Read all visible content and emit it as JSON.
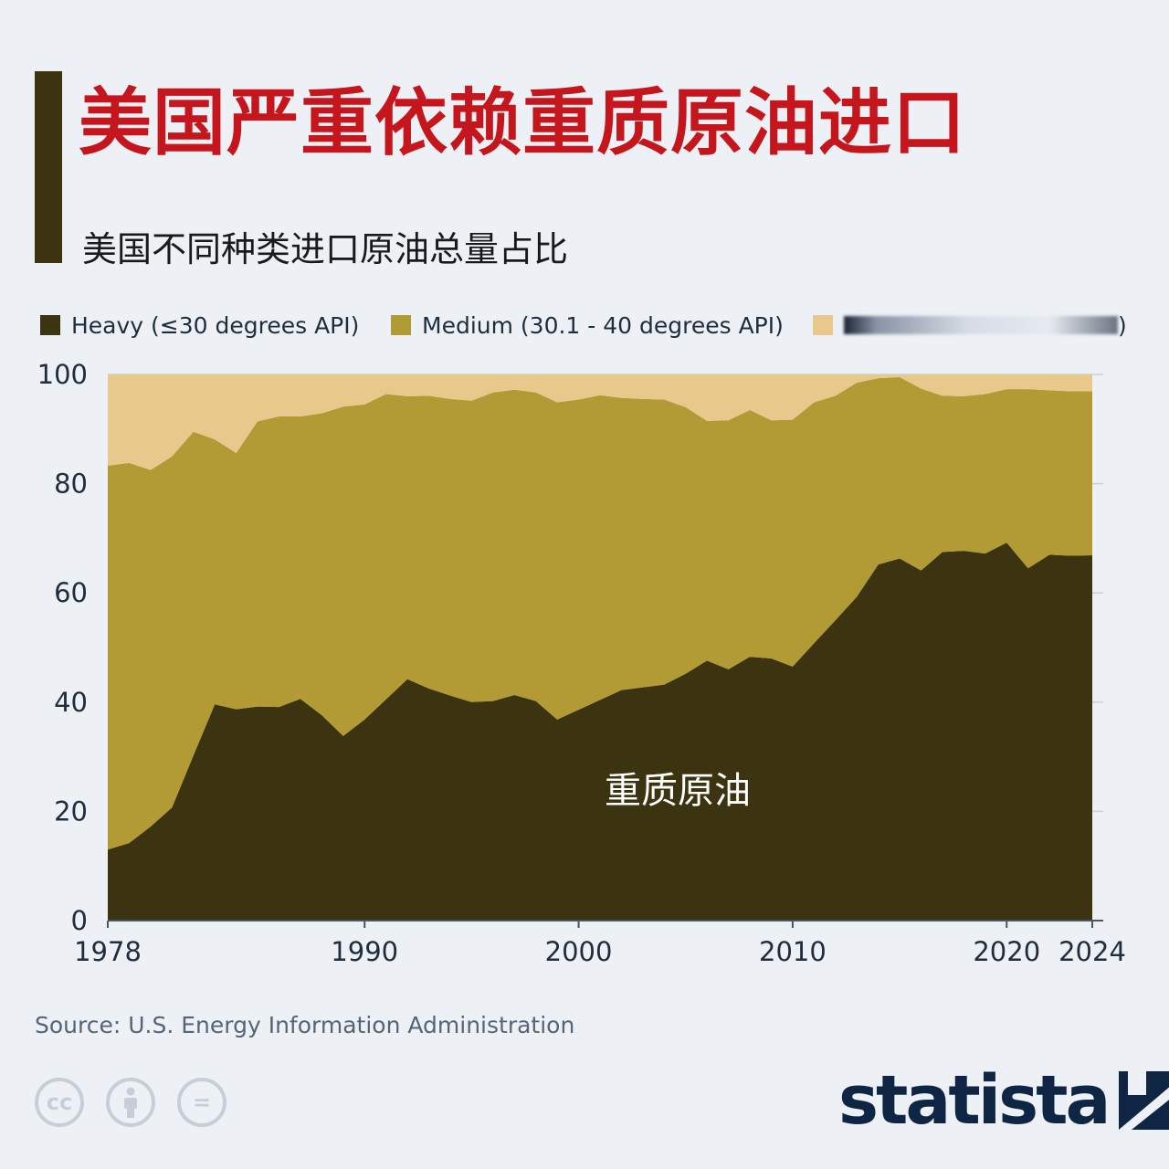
{
  "header": {
    "title": "美国严重依赖重质原油进口",
    "subtitle": "美国不同种类进口原油总量占比"
  },
  "legend": {
    "heavy": "Heavy (≤30 degrees API)",
    "medium": "Medium (30.1 - 40 degrees API)",
    "light_suffix": ")"
  },
  "colors": {
    "heavy": "#3c3410",
    "medium": "#b29a34",
    "light": "#e8c98b",
    "title": "#c4161c",
    "background": "#edf1f6"
  },
  "chart_data": {
    "type": "area",
    "stacked": true,
    "x": [
      1978,
      1979,
      1980,
      1981,
      1982,
      1983,
      1984,
      1985,
      1986,
      1987,
      1988,
      1989,
      1990,
      1991,
      1992,
      1993,
      1994,
      1995,
      1996,
      1997,
      1998,
      1999,
      2000,
      2001,
      2002,
      2003,
      2004,
      2005,
      2006,
      2007,
      2008,
      2009,
      2010,
      2011,
      2012,
      2013,
      2014,
      2015,
      2016,
      2017,
      2018,
      2019,
      2020,
      2021,
      2022,
      2023,
      2024
    ],
    "series": [
      {
        "name": "Heavy (≤30 degrees API)",
        "values": [
          13,
          14.2,
          17.2,
          20.7,
          30.2,
          39.6,
          38.7,
          39.2,
          39.1,
          40.6,
          37.6,
          33.8,
          36.8,
          40.5,
          44.2,
          42.5,
          41.2,
          40,
          40.2,
          41.3,
          40.2,
          36.8,
          38.6,
          40.4,
          42.2,
          42.7,
          43.2,
          45.2,
          47.6,
          46,
          48.3,
          48,
          46.5,
          50.8,
          55,
          59.3,
          65.2,
          66.3,
          64.1,
          67.5,
          67.7,
          67.2,
          69.2,
          64.5,
          67,
          66.8,
          66.9
        ]
      },
      {
        "name": "Medium (30.1 - 40 degrees API)",
        "values": [
          70.3,
          69.6,
          65.3,
          64.3,
          59.3,
          48.5,
          46.9,
          52.2,
          53.2,
          51.7,
          55.3,
          60.3,
          57.7,
          55.9,
          51.8,
          53.6,
          54.3,
          55.2,
          56.5,
          55.9,
          56.5,
          58.1,
          56.8,
          55.8,
          53.5,
          52.8,
          52.2,
          48.8,
          43.9,
          45.6,
          45.2,
          43.6,
          45.2,
          44.1,
          41.1,
          39.2,
          34.1,
          33.2,
          33.3,
          28.6,
          28.3,
          29.2,
          28.1,
          32.8,
          30.1,
          30.1,
          30
        ]
      },
      {
        "name": "",
        "values": [
          16.7,
          16.2,
          17.5,
          15,
          10.5,
          11.9,
          14.4,
          8.6,
          7.7,
          7.7,
          7.1,
          5.9,
          5.5,
          3.6,
          4,
          3.9,
          4.5,
          4.8,
          3.3,
          2.8,
          3.3,
          5.1,
          4.6,
          3.8,
          4.3,
          4.5,
          4.6,
          6,
          8.5,
          8.4,
          6.5,
          8.4,
          8.3,
          5.1,
          3.9,
          1.5,
          0.7,
          0.5,
          2.6,
          3.9,
          4,
          3.6,
          2.7,
          2.7,
          2.9,
          3.1,
          3.1
        ]
      }
    ],
    "ylim": [
      0,
      100
    ],
    "yticks": [
      "0",
      "20",
      "40",
      "60",
      "80",
      "100"
    ],
    "xticks": [
      "1978",
      "1990",
      "2000",
      "2010",
      "2020",
      "2024"
    ],
    "annotation": "重质原油",
    "grid": true
  },
  "footer": {
    "source": "Source: U.S. Energy Information Administration",
    "cc_icons": [
      "cc-icon",
      "by-icon",
      "nd-icon"
    ],
    "cc_glyphs": [
      "cc",
      "="
    ],
    "logo": "statista"
  }
}
